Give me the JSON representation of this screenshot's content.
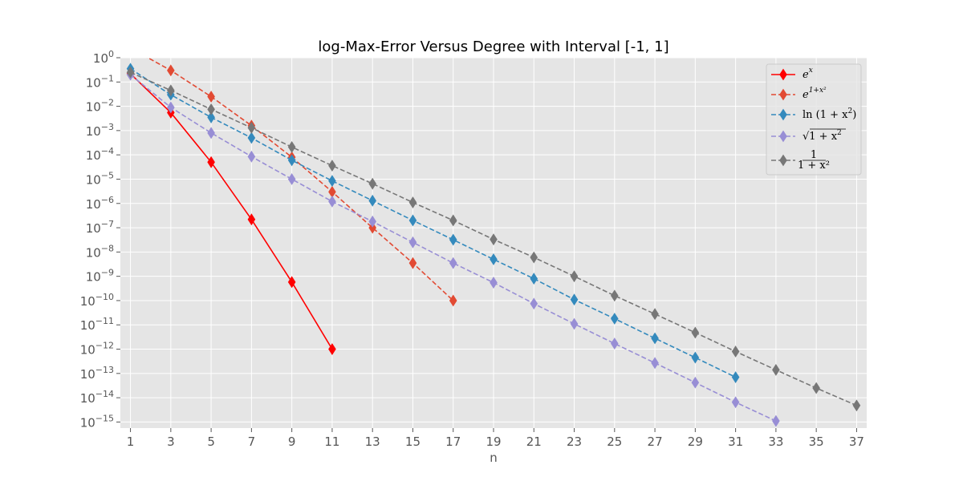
{
  "chart_data": {
    "type": "line",
    "title": "log-Max-Error Versus Degree with Interval [-1, 1]",
    "xlabel": "n",
    "ylabel": "",
    "yscale": "log",
    "xlim": [
      0.5,
      37.5
    ],
    "ylim_exp": [
      -15.25,
      0
    ],
    "x_ticks": [
      1,
      3,
      5,
      7,
      9,
      11,
      13,
      15,
      17,
      19,
      21,
      23,
      25,
      27,
      29,
      31,
      33,
      35,
      37
    ],
    "y_ticks_exp": [
      0,
      -1,
      -2,
      -3,
      -4,
      -5,
      -6,
      -7,
      -8,
      -9,
      -10,
      -11,
      -12,
      -13,
      -14,
      -15
    ],
    "y_tick_base": "10",
    "grid": true,
    "legend_position": "top-right",
    "background": "#e5e5e5",
    "series": [
      {
        "name": "e^x",
        "legend": {
          "base": "e",
          "sup": "x"
        },
        "color": "#ff0000",
        "linestyle": "solid",
        "marker": "thin-diamond",
        "x": [
          1,
          3,
          5,
          7,
          9,
          11
        ],
        "y": [
          0.22,
          0.0055,
          5e-05,
          2.2e-07,
          5.8e-10,
          1e-12
        ]
      },
      {
        "name": "e^(1+x^2)",
        "legend": {
          "base": "e",
          "sup": "1+x²"
        },
        "color": "#e24a33",
        "linestyle": "dashed",
        "marker": "thin-diamond",
        "x": [
          1,
          3,
          5,
          7,
          9,
          11,
          13,
          15,
          17
        ],
        "y": [
          2.5,
          0.3,
          0.025,
          0.0016,
          8e-05,
          3e-06,
          1e-07,
          3.5e-09,
          1e-10
        ]
      },
      {
        "name": "ln(1+x^2)",
        "legend": {
          "text": "ln (1 + x",
          "sup": "2",
          "tail": ")"
        },
        "color": "#348abd",
        "linestyle": "dashed",
        "marker": "thin-diamond",
        "x": [
          1,
          3,
          5,
          7,
          9,
          11,
          13,
          15,
          17,
          19,
          21,
          23,
          25,
          27,
          29,
          31
        ],
        "y": [
          0.35,
          0.03,
          0.0035,
          0.0005,
          6e-05,
          8.5e-06,
          1.3e-06,
          2e-07,
          3.2e-08,
          5e-09,
          8e-10,
          1.1e-10,
          1.8e-11,
          2.8e-12,
          4.5e-13,
          7e-14
        ]
      },
      {
        "name": "sqrt(1+x^2)",
        "legend": {
          "text": "√1 + x",
          "sup": "2",
          "tail": ""
        },
        "color": "#988ed5",
        "linestyle": "dashed",
        "marker": "thin-diamond",
        "x": [
          1,
          3,
          5,
          7,
          9,
          11,
          13,
          15,
          17,
          19,
          21,
          23,
          25,
          27,
          29,
          31,
          33
        ],
        "y": [
          0.2,
          0.009,
          0.0008,
          8.5e-05,
          1e-05,
          1.2e-06,
          1.8e-07,
          2.5e-08,
          3.5e-09,
          5.5e-10,
          7.5e-11,
          1.1e-11,
          1.7e-12,
          2.7e-13,
          4.2e-14,
          6.5e-15,
          1.1e-15
        ]
      },
      {
        "name": "1/(1+x^2)",
        "legend": {
          "num": "1",
          "den": "1 + x²"
        },
        "color": "#777777",
        "linestyle": "dashed",
        "marker": "thin-diamond",
        "x": [
          1,
          3,
          5,
          7,
          9,
          11,
          13,
          15,
          17,
          19,
          21,
          23,
          25,
          27,
          29,
          31,
          33,
          35,
          37
        ],
        "y": [
          0.25,
          0.045,
          0.0075,
          0.0013,
          0.00021,
          3.6e-05,
          6.5e-06,
          1.1e-06,
          2e-07,
          3.3e-08,
          6e-09,
          1e-09,
          1.6e-10,
          2.8e-11,
          4.8e-12,
          8e-13,
          1.4e-13,
          2.5e-14,
          4.8e-15
        ]
      }
    ]
  }
}
